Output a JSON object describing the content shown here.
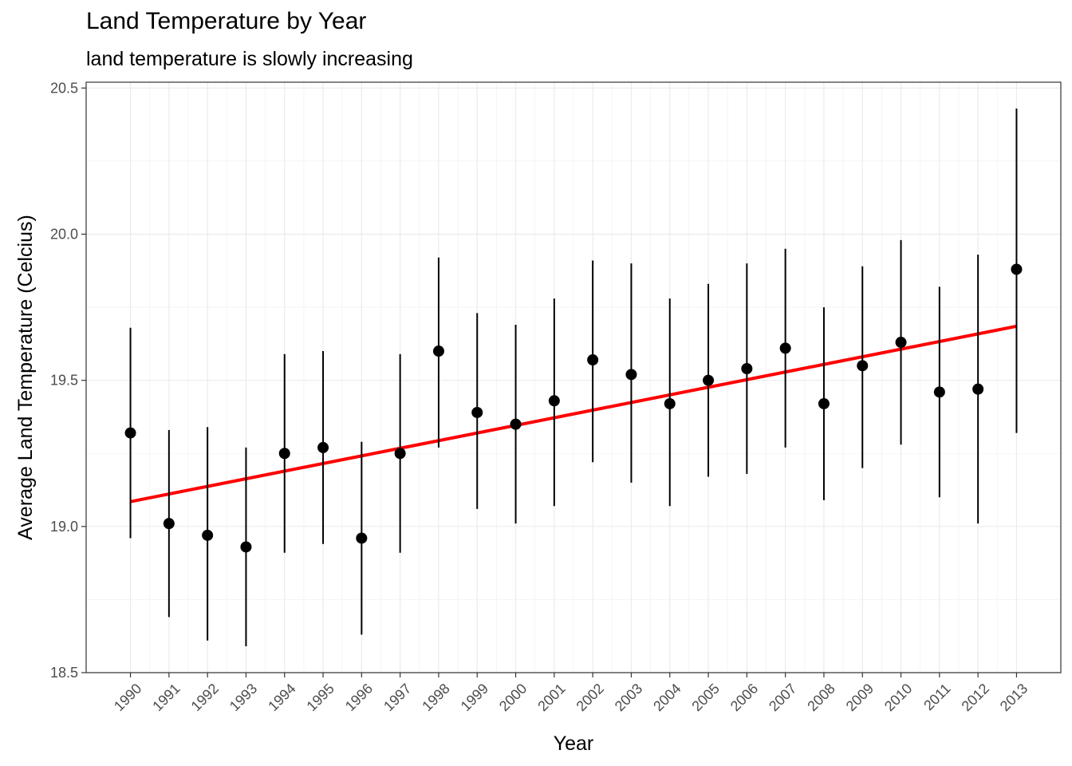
{
  "chart_data": {
    "type": "scatter",
    "title": "Land Temperature by Year",
    "subtitle": "land temperature is slowly increasing",
    "xlabel": "Year",
    "ylabel": "Average Land Temperature (Celcius)",
    "x": [
      1990,
      1991,
      1992,
      1993,
      1994,
      1995,
      1996,
      1997,
      1998,
      1999,
      2000,
      2001,
      2002,
      2003,
      2004,
      2005,
      2006,
      2007,
      2008,
      2009,
      2010,
      2011,
      2012,
      2013
    ],
    "x_tick_labels": [
      "1990",
      "1991",
      "1992",
      "1993",
      "1994",
      "1995",
      "1996",
      "1997",
      "1998",
      "1999",
      "2000",
      "2001",
      "2002",
      "2003",
      "2004",
      "2005",
      "2006",
      "2007",
      "2008",
      "2009",
      "2010",
      "2011",
      "2012",
      "2013"
    ],
    "y_ticks": [
      "18.5",
      "19.0",
      "19.5",
      "20.0",
      "20.5"
    ],
    "ylim": [
      18.5,
      20.52
    ],
    "grid": true,
    "series": [
      {
        "values": [
          19.32,
          19.01,
          18.97,
          18.93,
          19.25,
          19.27,
          18.96,
          19.25,
          19.6,
          19.39,
          19.35,
          19.43,
          19.57,
          19.52,
          19.42,
          19.5,
          19.54,
          19.61,
          19.42,
          19.55,
          19.63,
          19.46,
          19.47,
          19.88
        ],
        "lower": [
          18.96,
          18.69,
          18.61,
          18.59,
          18.91,
          18.94,
          18.63,
          18.91,
          19.27,
          19.06,
          19.01,
          19.07,
          19.22,
          19.15,
          19.07,
          19.17,
          19.18,
          19.27,
          19.09,
          19.2,
          19.28,
          19.1,
          19.01,
          19.32
        ],
        "upper": [
          19.68,
          19.33,
          19.34,
          19.27,
          19.59,
          19.6,
          19.29,
          19.59,
          19.92,
          19.73,
          19.69,
          19.78,
          19.91,
          19.9,
          19.78,
          19.83,
          19.9,
          19.95,
          19.75,
          19.89,
          19.98,
          19.82,
          19.93,
          20.43
        ],
        "color": "#000000"
      }
    ],
    "trend_line": {
      "start": [
        1990,
        19.085
      ],
      "end": [
        2013,
        19.685
      ],
      "color": "#ff0000"
    }
  }
}
